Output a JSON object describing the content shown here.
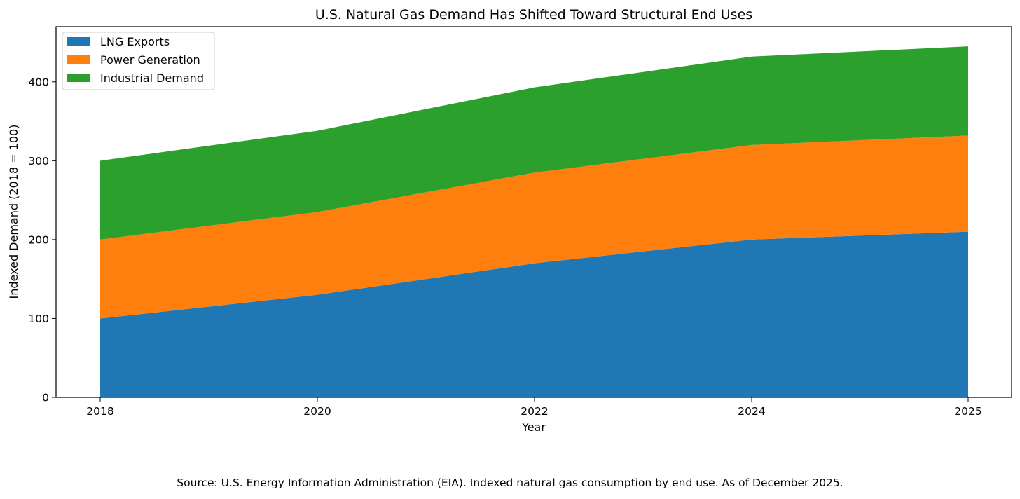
{
  "chart_data": {
    "type": "area",
    "stacked": true,
    "title": "U.S. Natural Gas Demand Has Shifted Toward Structural End Uses",
    "xlabel": "Year",
    "ylabel": "Indexed Demand (2018 = 100)",
    "categories": [
      "2018",
      "2020",
      "2022",
      "2024",
      "2025"
    ],
    "ylim": [
      0,
      470
    ],
    "yticks": [
      0,
      100,
      200,
      300,
      400
    ],
    "series": [
      {
        "name": "LNG Exports",
        "color": "#1f77b4",
        "values": [
          100,
          130,
          170,
          200,
          210
        ]
      },
      {
        "name": "Power Generation",
        "color": "#ff7f0e",
        "values": [
          100,
          105,
          115,
          120,
          122
        ]
      },
      {
        "name": "Industrial Demand",
        "color": "#2ca02c",
        "values": [
          100,
          103,
          108,
          112,
          113
        ]
      }
    ],
    "legend_position": "top-left"
  },
  "footer": {
    "source": "Source: U.S. Energy Information Administration (EIA). Indexed natural gas consumption by end use. As of December 2025."
  }
}
